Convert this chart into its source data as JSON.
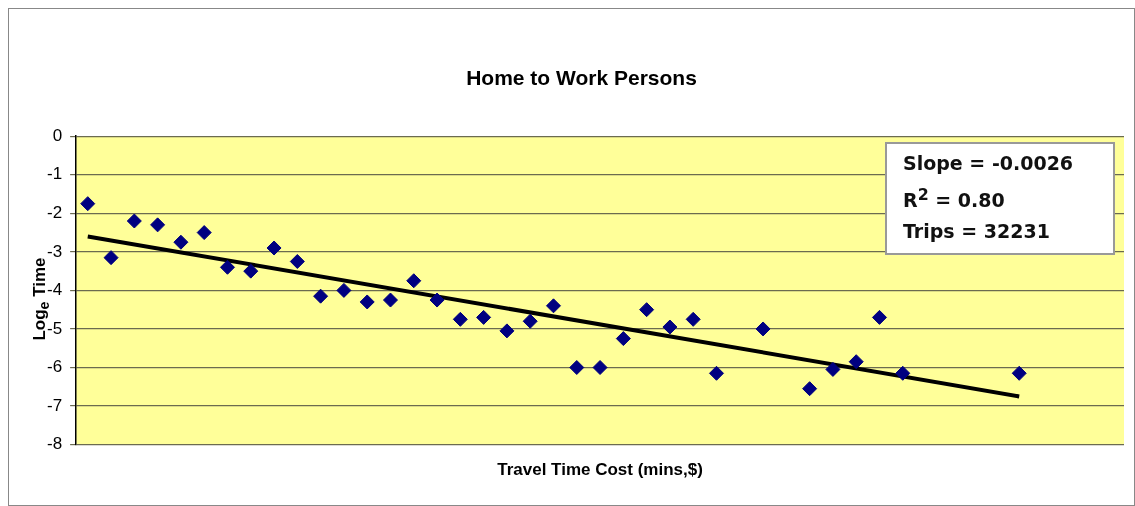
{
  "chart_data": {
    "type": "scatter",
    "title": "Home to Work Persons",
    "xlabel": "Travel Time Cost (mins,$)",
    "ylabel": "Log$_{e}$ Time",
    "categories": [
      null,
      null,
      null,
      null,
      null,
      null,
      null,
      null,
      null,
      null,
      null,
      null,
      null,
      null,
      null,
      null,
      null,
      null,
      null,
      null,
      null,
      null,
      null,
      null,
      null,
      null,
      null,
      null,
      null,
      null,
      null,
      null,
      null,
      null,
      null,
      null,
      null,
      null,
      null,
      null,
      null,
      null,
      null,
      null,
      null
    ],
    "series": [
      {
        "type": "scatter",
        "color": "#000080",
        "marker": "diamond",
        "values": [
          -1.75,
          -3.15,
          -2.2,
          -2.3,
          -2.75,
          -2.5,
          -3.4,
          -3.5,
          -2.9,
          -3.25,
          -4.15,
          -4.0,
          -4.3,
          -4.25,
          -3.75,
          -4.25,
          -4.75,
          -4.7,
          -5.05,
          -4.8,
          -4.4,
          -6.0,
          -6.0,
          -5.25,
          -4.5,
          -4.95,
          -4.75,
          -6.15,
          null,
          -5.0,
          null,
          -6.55,
          -6.05,
          -5.85,
          -4.7,
          -6.15,
          null,
          null,
          null,
          null,
          -6.15,
          null,
          null,
          null,
          null
        ]
      },
      {
        "type": "line",
        "color": "#000000",
        "marker": "none",
        "values": [
          -2.6,
          null,
          null,
          null,
          null,
          null,
          null,
          null,
          null,
          null,
          null,
          null,
          null,
          null,
          null,
          null,
          null,
          null,
          null,
          null,
          null,
          null,
          null,
          null,
          null,
          null,
          null,
          null,
          null,
          null,
          null,
          null,
          null,
          null,
          null,
          null,
          null,
          null,
          null,
          null,
          -6.75,
          null,
          null,
          null,
          null
        ]
      }
    ],
    "ylim": [
      -8,
      0
    ],
    "yticks": [
      -8,
      -7,
      -6,
      -5,
      -4,
      -3,
      -2,
      -1,
      0
    ],
    "grid": "y",
    "legend": false,
    "annotations": [
      "Slope = -0.0026",
      "R$^{2}$ = 0.80",
      "Trips = 32231"
    ]
  }
}
